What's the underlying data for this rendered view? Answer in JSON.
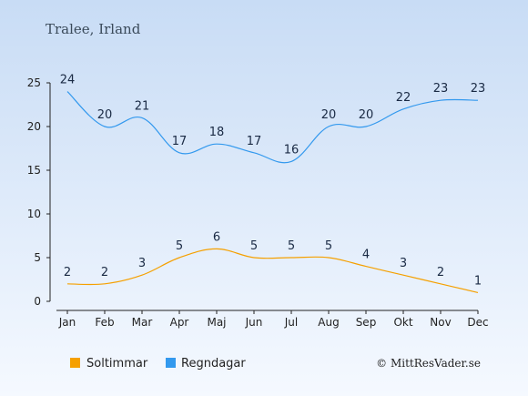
{
  "chart_data": {
    "type": "line",
    "title": "Tralee, Irland",
    "categories": [
      "Jan",
      "Feb",
      "Mar",
      "Apr",
      "Maj",
      "Jun",
      "Jul",
      "Aug",
      "Sep",
      "Okt",
      "Nov",
      "Dec"
    ],
    "ylim": [
      0,
      25
    ],
    "yticks": [
      0,
      5,
      10,
      15,
      20,
      25
    ],
    "grid": false,
    "legend_position": "bottom-left",
    "series": [
      {
        "name": "Soltimmar",
        "color": "#f5a000",
        "values": [
          2,
          2,
          3,
          5,
          6,
          5,
          5,
          5,
          4,
          3,
          2,
          1
        ]
      },
      {
        "name": "Regndagar",
        "color": "#3399ee",
        "values": [
          24,
          20,
          21,
          17,
          18,
          17,
          16,
          20,
          20,
          22,
          23,
          23
        ]
      }
    ],
    "copyright": "© MittResVader.se"
  }
}
